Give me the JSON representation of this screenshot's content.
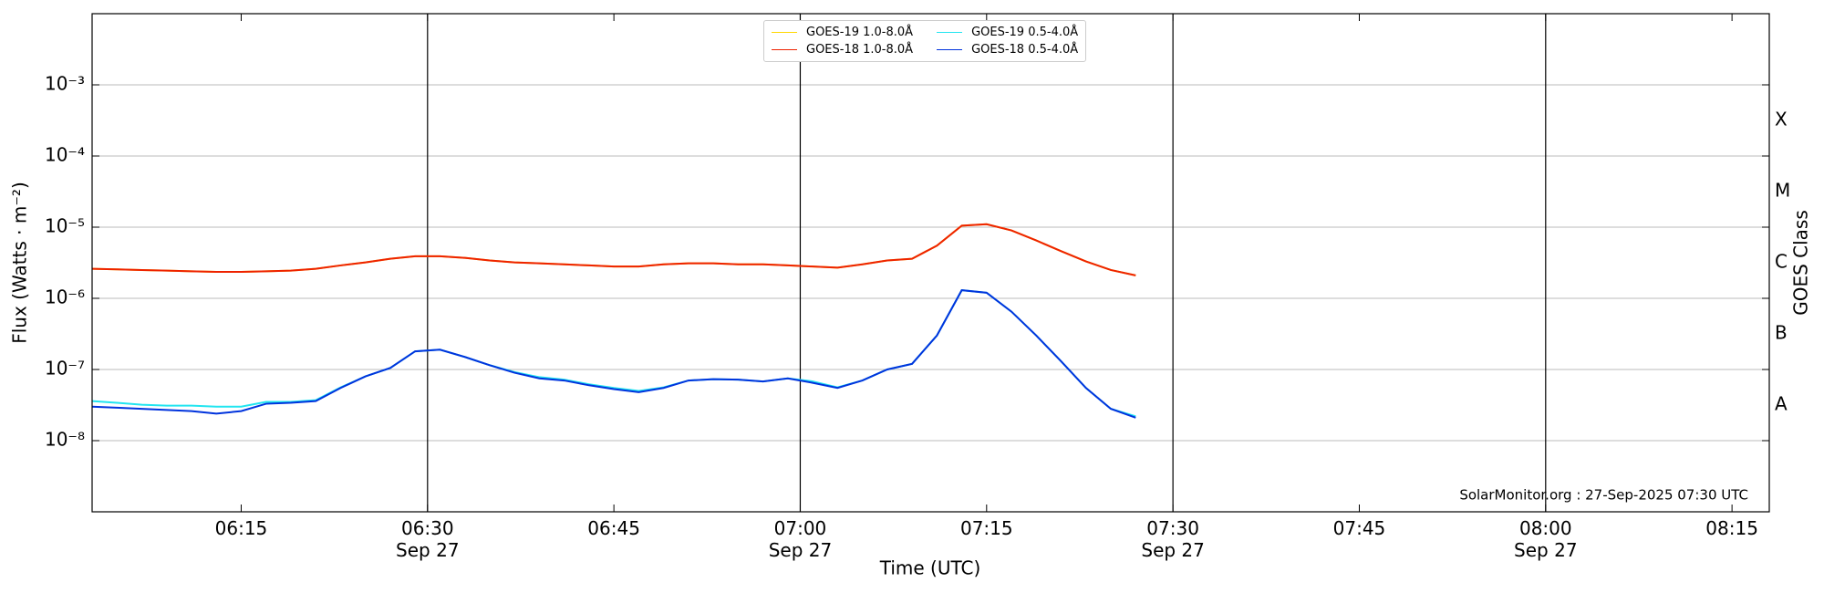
{
  "chart_data": {
    "type": "line",
    "xlabel": "Time (UTC)",
    "ylabel": "Flux (Watts · m⁻²)",
    "y2label": "GOES Class",
    "annotation": "SolarMonitor.org : 27-Sep-2025 07:30 UTC",
    "log_y": true,
    "grid": true,
    "legend": "upper center",
    "xlim": [
      "06:03",
      "08:18"
    ],
    "ylim": [
      1e-09,
      0.01
    ],
    "y2lim": [
      1e-09,
      0.01
    ],
    "xticks": [
      "06:15",
      {
        "value": "06:30",
        "label": "06:30\nSep 27"
      },
      "06:45",
      {
        "value": "07:00",
        "label": "07:00\nSep 27"
      },
      "07:15",
      {
        "value": "07:30",
        "label": "07:30\nSep 27"
      },
      "07:45",
      {
        "value": "08:00",
        "label": "08:00\nSep 27"
      },
      "08:15"
    ],
    "vlines": [
      "06:30",
      "07:00",
      "07:30",
      "08:00"
    ],
    "yticks": [
      {
        "value": 1e-08,
        "label": "10⁻⁸"
      },
      {
        "value": 1e-07,
        "label": "10⁻⁷"
      },
      {
        "value": 1e-06,
        "label": "10⁻⁶"
      },
      {
        "value": 1e-05,
        "label": "10⁻⁵"
      },
      {
        "value": 0.0001,
        "label": "10⁻⁴"
      },
      {
        "value": 0.001,
        "label": "10⁻³"
      }
    ],
    "y2ticks": [
      {
        "value": 3.162e-08,
        "label": "A"
      },
      {
        "value": 3.162e-07,
        "label": "B"
      },
      {
        "value": 3.162e-06,
        "label": "C"
      },
      {
        "value": 3.162e-05,
        "label": "M"
      },
      {
        "value": 0.0003162,
        "label": "X"
      }
    ],
    "x": [
      "06:03",
      "06:05",
      "06:07",
      "06:09",
      "06:11",
      "06:13",
      "06:15",
      "06:17",
      "06:19",
      "06:21",
      "06:23",
      "06:25",
      "06:27",
      "06:29",
      "06:31",
      "06:33",
      "06:35",
      "06:37",
      "06:39",
      "06:41",
      "06:43",
      "06:45",
      "06:47",
      "06:49",
      "06:51",
      "06:53",
      "06:55",
      "06:57",
      "06:59",
      "07:01",
      "07:03",
      "07:05",
      "07:07",
      "07:09",
      "07:11",
      "07:13",
      "07:15",
      "07:17",
      "07:19",
      "07:21",
      "07:23",
      "07:25",
      "07:27"
    ],
    "series": [
      {
        "name": "GOES-19 1.0-8.0Å",
        "color": "#ffd700",
        "values": [
          2.6e-06,
          2.55e-06,
          2.5e-06,
          2.45e-06,
          2.4e-06,
          2.35e-06,
          2.35e-06,
          2.4e-06,
          2.45e-06,
          2.6e-06,
          2.9e-06,
          3.2e-06,
          3.6e-06,
          3.9e-06,
          3.9e-06,
          3.7e-06,
          3.4e-06,
          3.2e-06,
          3.1e-06,
          3e-06,
          2.9e-06,
          2.8e-06,
          2.8e-06,
          3e-06,
          3.1e-06,
          3.1e-06,
          3e-06,
          3e-06,
          2.9e-06,
          2.8e-06,
          2.7e-06,
          3e-06,
          3.4e-06,
          3.6e-06,
          5.5e-06,
          1.05e-05,
          1.1e-05,
          9e-06,
          6.5e-06,
          4.6e-06,
          3.3e-06,
          2.5e-06,
          2.1e-06
        ]
      },
      {
        "name": "GOES-18 1.0-8.0Å",
        "color": "#ee2200",
        "values": [
          2.6e-06,
          2.55e-06,
          2.5e-06,
          2.45e-06,
          2.4e-06,
          2.35e-06,
          2.35e-06,
          2.4e-06,
          2.45e-06,
          2.6e-06,
          2.9e-06,
          3.2e-06,
          3.6e-06,
          3.9e-06,
          3.9e-06,
          3.7e-06,
          3.4e-06,
          3.2e-06,
          3.1e-06,
          3e-06,
          2.9e-06,
          2.8e-06,
          2.8e-06,
          3e-06,
          3.1e-06,
          3.1e-06,
          3e-06,
          3e-06,
          2.9e-06,
          2.8e-06,
          2.7e-06,
          3e-06,
          3.4e-06,
          3.6e-06,
          5.5e-06,
          1.05e-05,
          1.1e-05,
          9e-06,
          6.5e-06,
          4.6e-06,
          3.3e-06,
          2.5e-06,
          2.1e-06
        ]
      },
      {
        "name": "GOES-19 0.5-4.0Å",
        "color": "#22e5f0",
        "values": [
          3.6e-08,
          3.4e-08,
          3.2e-08,
          3.1e-08,
          3.1e-08,
          3e-08,
          3e-08,
          3.5e-08,
          3.5e-08,
          3.7e-08,
          5.6e-08,
          8e-08,
          1.05e-07,
          1.8e-07,
          1.9e-07,
          1.5e-07,
          1.15e-07,
          9.2e-08,
          7.8e-08,
          7.2e-08,
          6.2e-08,
          5.5e-08,
          5e-08,
          5.6e-08,
          7e-08,
          7.3e-08,
          7.2e-08,
          6.8e-08,
          7.5e-08,
          6.8e-08,
          5.6e-08,
          7e-08,
          1e-07,
          1.2e-07,
          3e-07,
          1.3e-06,
          1.2e-06,
          6.5e-07,
          3e-07,
          1.3e-07,
          5.5e-08,
          2.8e-08,
          2.2e-08
        ]
      },
      {
        "name": "GOES-18 0.5-4.0Å",
        "color": "#0033dd",
        "values": [
          3e-08,
          2.9e-08,
          2.8e-08,
          2.7e-08,
          2.6e-08,
          2.4e-08,
          2.6e-08,
          3.3e-08,
          3.4e-08,
          3.6e-08,
          5.5e-08,
          8e-08,
          1.05e-07,
          1.8e-07,
          1.9e-07,
          1.5e-07,
          1.15e-07,
          9e-08,
          7.5e-08,
          7e-08,
          6e-08,
          5.3e-08,
          4.8e-08,
          5.5e-08,
          7e-08,
          7.3e-08,
          7.2e-08,
          6.8e-08,
          7.5e-08,
          6.5e-08,
          5.5e-08,
          7e-08,
          1e-07,
          1.2e-07,
          3e-07,
          1.3e-06,
          1.2e-06,
          6.5e-07,
          3e-07,
          1.3e-07,
          5.5e-08,
          2.8e-08,
          2.1e-08
        ]
      }
    ]
  }
}
